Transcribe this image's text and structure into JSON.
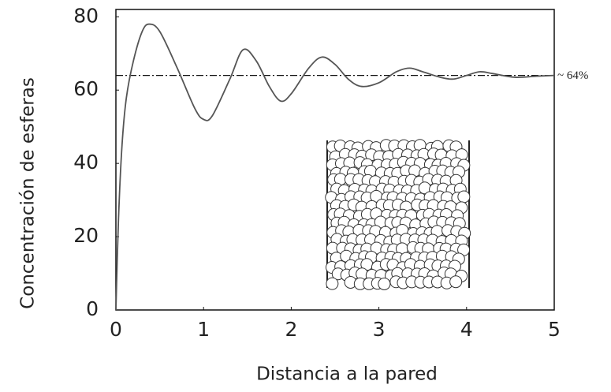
{
  "chart_data": {
    "type": "line",
    "xlabel": "Distancia a la pared",
    "ylabel": "Concentración de esferas",
    "x": [
      0,
      0.03,
      0.07,
      0.12,
      0.2,
      0.3,
      0.38,
      0.5,
      0.7,
      0.9,
      1.0,
      1.1,
      1.3,
      1.45,
      1.6,
      1.75,
      1.88,
      2.0,
      2.2,
      2.35,
      2.5,
      2.65,
      2.8,
      3.0,
      3.2,
      3.35,
      3.5,
      3.7,
      3.85,
      4.0,
      4.15,
      4.3,
      4.55,
      4.8,
      5.0
    ],
    "values": [
      0,
      25,
      45,
      58,
      68,
      76,
      78,
      76,
      66,
      55,
      52,
      53,
      63,
      71,
      68,
      61,
      57,
      59,
      66,
      69,
      67,
      63,
      61,
      62,
      65,
      66,
      65,
      63.5,
      63,
      64,
      65,
      64.5,
      63.5,
      63.8,
      64
    ],
    "color": "#555555",
    "xlim": [
      0,
      5
    ],
    "xticks": [
      0,
      1,
      2,
      3,
      4,
      5
    ],
    "ylim": [
      0,
      82
    ],
    "yticks": [
      0,
      20,
      40,
      60,
      80
    ],
    "reference_line": {
      "value": 64,
      "label": "~ 64%"
    }
  }
}
